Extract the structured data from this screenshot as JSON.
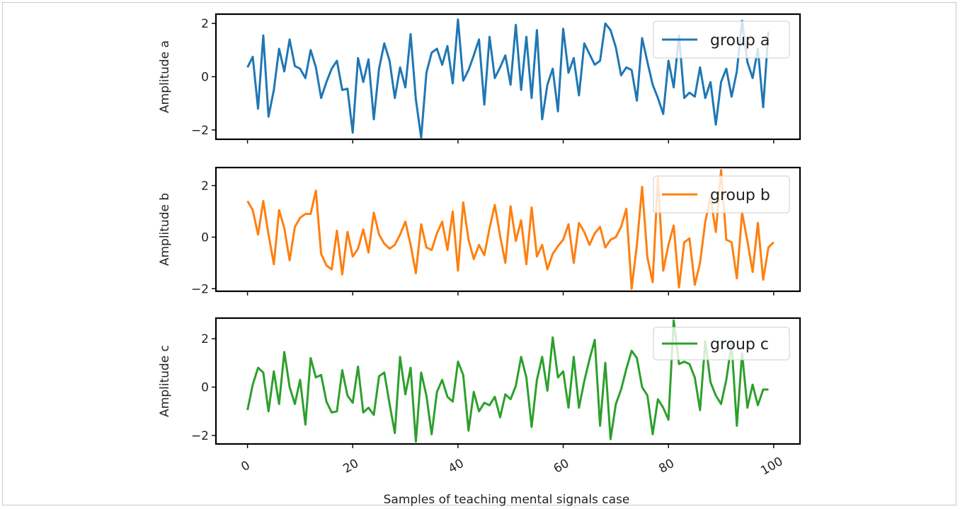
{
  "chart_data": {
    "type": "line",
    "xlabel": "Samples of teaching mental signals case",
    "xlim": [
      -6,
      105
    ],
    "x_ticks": [
      0,
      20,
      40,
      60,
      80,
      100
    ],
    "panels": [
      {
        "ylabel": "Amplitude a",
        "ylim": [
          -2.35,
          2.35
        ],
        "y_ticks": [
          -2,
          0,
          2
        ],
        "series": [
          {
            "name": "group a",
            "color": "#1f77b4",
            "values": [
              0.35,
              0.75,
              -1.2,
              1.55,
              -1.5,
              -0.5,
              1.05,
              0.2,
              1.4,
              0.4,
              0.3,
              -0.05,
              1.0,
              0.35,
              -0.8,
              -0.2,
              0.3,
              0.6,
              -0.5,
              -0.45,
              -2.1,
              0.7,
              -0.2,
              0.65,
              -1.6,
              0.3,
              1.25,
              0.6,
              -0.8,
              0.35,
              -0.4,
              1.6,
              -0.85,
              -2.3,
              0.15,
              0.9,
              1.05,
              0.45,
              1.15,
              -0.25,
              2.15,
              -0.15,
              0.25,
              0.8,
              1.4,
              -1.05,
              1.5,
              -0.05,
              0.35,
              0.8,
              -0.3,
              1.95,
              -0.5,
              1.5,
              -0.8,
              1.75,
              -1.6,
              -0.3,
              0.3,
              -1.3,
              1.8,
              0.15,
              0.7,
              -0.7,
              1.25,
              0.85,
              0.45,
              0.6,
              2.0,
              1.75,
              1.1,
              0.05,
              0.35,
              0.25,
              -0.9,
              1.45,
              0.55,
              -0.3,
              -0.8,
              -1.4,
              0.6,
              -0.4,
              1.55,
              -0.8,
              -0.6,
              -0.75,
              0.35,
              -0.8,
              -0.2,
              -1.8,
              -0.2,
              0.3,
              -0.75,
              0.2,
              2.1,
              0.55,
              -0.05,
              1.05,
              -1.15,
              1.7
            ]
          }
        ]
      },
      {
        "ylabel": "Amplitude b",
        "ylim": [
          -2.1,
          2.7
        ],
        "y_ticks": [
          -2,
          0,
          2
        ],
        "series": [
          {
            "name": "group b",
            "color": "#ff7f0e",
            "values": [
              1.4,
              1.05,
              0.1,
              1.4,
              0.1,
              -1.05,
              1.05,
              0.35,
              -0.9,
              0.4,
              0.75,
              0.9,
              0.9,
              1.8,
              -0.65,
              -1.1,
              -1.25,
              0.25,
              -1.45,
              0.2,
              -0.75,
              -0.45,
              0.3,
              -0.6,
              0.95,
              0.1,
              -0.25,
              -0.45,
              -0.3,
              0.1,
              0.6,
              -0.3,
              -1.4,
              0.5,
              -0.4,
              -0.5,
              0.15,
              0.6,
              -0.5,
              1.0,
              -1.3,
              1.35,
              -0.1,
              -0.85,
              -0.3,
              -0.7,
              0.35,
              1.25,
              0.05,
              -1.0,
              1.2,
              -0.15,
              0.65,
              -1.05,
              1.15,
              -0.75,
              -0.3,
              -1.25,
              -0.65,
              -0.35,
              -0.1,
              0.5,
              -1.0,
              0.55,
              0.2,
              -0.3,
              0.15,
              0.4,
              -0.4,
              -0.1,
              0.0,
              0.4,
              1.1,
              -2.0,
              -0.3,
              1.95,
              -0.8,
              -1.75,
              2.3,
              -1.3,
              -0.3,
              0.45,
              -1.95,
              -0.2,
              -0.05,
              -1.85,
              -1.0,
              0.6,
              1.55,
              0.2,
              2.6,
              -0.1,
              -0.2,
              -1.6,
              0.95,
              -0.15,
              -1.35,
              0.55,
              -1.65,
              -0.4,
              -0.2
            ]
          }
        ]
      },
      {
        "ylabel": "Amplitude c",
        "ylim": [
          -2.35,
          2.85
        ],
        "y_ticks": [
          -2,
          0,
          2
        ],
        "series": [
          {
            "name": "group c",
            "color": "#2ca02c",
            "values": [
              -0.95,
              0.1,
              0.8,
              0.6,
              -1.0,
              0.65,
              -0.7,
              1.45,
              0.0,
              -0.7,
              0.3,
              -1.55,
              1.2,
              0.4,
              0.5,
              -0.6,
              -1.05,
              -1.0,
              0.7,
              -0.35,
              -0.65,
              0.85,
              -1.05,
              -0.85,
              -1.15,
              0.45,
              0.6,
              -0.7,
              -1.9,
              1.25,
              -0.3,
              0.8,
              -2.25,
              0.6,
              -0.35,
              -1.95,
              -0.2,
              0.3,
              -0.4,
              -0.6,
              1.05,
              0.5,
              -1.8,
              -0.2,
              -1.0,
              -0.65,
              -0.75,
              -0.4,
              -1.25,
              -0.3,
              -0.5,
              0.05,
              1.25,
              0.4,
              -1.65,
              0.3,
              1.25,
              -0.15,
              2.05,
              0.4,
              0.65,
              -0.85,
              1.25,
              -0.85,
              0.25,
              1.15,
              1.95,
              -1.6,
              1.0,
              -2.15,
              -0.7,
              -0.1,
              0.75,
              1.5,
              1.2,
              0.0,
              -0.35,
              -1.95,
              -0.5,
              -0.85,
              -1.35,
              2.75,
              0.95,
              1.05,
              0.95,
              0.4,
              -0.95,
              1.9,
              0.2,
              -0.35,
              -0.7,
              0.3,
              1.8,
              -1.6,
              1.4,
              -0.85,
              0.1,
              -0.75,
              -0.1,
              -0.1
            ]
          }
        ]
      }
    ]
  }
}
